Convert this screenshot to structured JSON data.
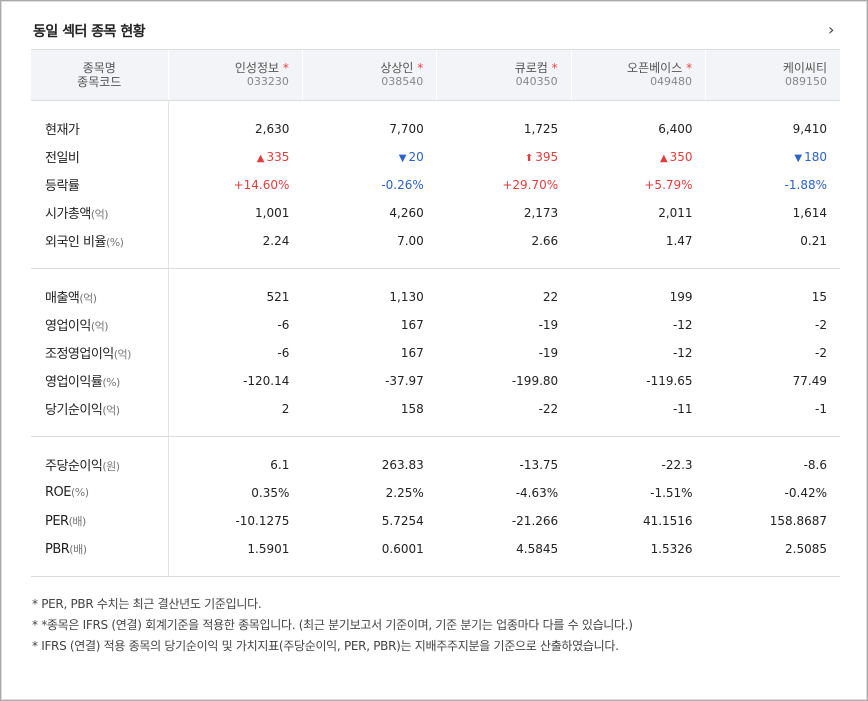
{
  "title": "동일 섹터 종목 현황",
  "more_icon": "chevron-right-icon",
  "header": {
    "name_label": "종목명",
    "code_label": "종목코드",
    "star": "*"
  },
  "companies": [
    {
      "name": "인성정보",
      "code": "033230",
      "ifrs_star": true
    },
    {
      "name": "상상인",
      "code": "038540",
      "ifrs_star": true
    },
    {
      "name": "큐로컴",
      "code": "040350",
      "ifrs_star": true
    },
    {
      "name": "오픈베이스",
      "code": "049480",
      "ifrs_star": true
    },
    {
      "name": "케이씨티",
      "code": "089150",
      "ifrs_star": false
    }
  ],
  "groups": [
    [
      {
        "label": "현재가",
        "unit": "",
        "values": [
          "2,630",
          "7,700",
          "1,725",
          "6,400",
          "9,410"
        ]
      },
      {
        "label": "전일비",
        "unit": "",
        "values": [
          "335",
          "20",
          "395",
          "350",
          "180"
        ],
        "arrows": [
          "▲",
          "▼",
          "⬆",
          "▲",
          "▼"
        ],
        "dirs": [
          "up",
          "dn",
          "up",
          "up",
          "dn"
        ]
      },
      {
        "label": "등락률",
        "unit": "",
        "values": [
          "+14.60%",
          "-0.26%",
          "+29.70%",
          "+5.79%",
          "-1.88%"
        ],
        "dirs": [
          "up",
          "dn",
          "up",
          "up",
          "dn"
        ]
      },
      {
        "label": "시가총액",
        "unit": "(억)",
        "values": [
          "1,001",
          "4,260",
          "2,173",
          "2,011",
          "1,614"
        ]
      },
      {
        "label": "외국인 비율",
        "unit": "(%)",
        "values": [
          "2.24",
          "7.00",
          "2.66",
          "1.47",
          "0.21"
        ]
      }
    ],
    [
      {
        "label": "매출액",
        "unit": "(억)",
        "values": [
          "521",
          "1,130",
          "22",
          "199",
          "15"
        ]
      },
      {
        "label": "영업이익",
        "unit": "(억)",
        "values": [
          "-6",
          "167",
          "-19",
          "-12",
          "-2"
        ]
      },
      {
        "label": "조정영업이익",
        "unit": "(억)",
        "values": [
          "-6",
          "167",
          "-19",
          "-12",
          "-2"
        ]
      },
      {
        "label": "영업이익률",
        "unit": "(%)",
        "values": [
          "-120.14",
          "-37.97",
          "-199.80",
          "-119.65",
          "77.49"
        ]
      },
      {
        "label": "당기순이익",
        "unit": "(억)",
        "values": [
          "2",
          "158",
          "-22",
          "-11",
          "-1"
        ]
      }
    ],
    [
      {
        "label": "주당순이익",
        "unit": "(원)",
        "values": [
          "6.1",
          "263.83",
          "-13.75",
          "-22.3",
          "-8.6"
        ]
      },
      {
        "label": "ROE",
        "unit": "(%)",
        "values": [
          "0.35%",
          "2.25%",
          "-4.63%",
          "-1.51%",
          "-0.42%"
        ]
      },
      {
        "label": "PER",
        "unit": "(배)",
        "values": [
          "-10.1275",
          "5.7254",
          "-21.266",
          "41.1516",
          "158.8687"
        ]
      },
      {
        "label": "PBR",
        "unit": "(배)",
        "values": [
          "1.5901",
          "0.6001",
          "4.5845",
          "1.5326",
          "2.5085"
        ]
      }
    ]
  ],
  "notes": [
    "* PER, PBR 수치는 최근 결산년도 기준입니다.",
    "* *종목은 IFRS (연결) 회계기준을 적용한 종목입니다. (최근 분기보고서 기준이며, 기준 분기는 업종마다 다를 수 있습니다.)",
    "* IFRS (연결) 적용 종목의 당기순이익 및 가치지표(주당순이익, PER, PBR)는 지배주주지분을 기준으로 산출하였습니다."
  ],
  "colors": {
    "up": "#e23d3d",
    "down": "#2d62c7",
    "header_bg": "#f3f4f7"
  }
}
